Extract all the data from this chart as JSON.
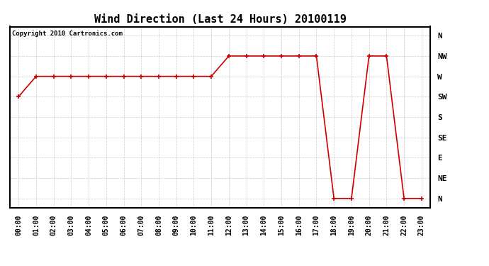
{
  "title": "Wind Direction (Last 24 Hours) 20100119",
  "copyright": "Copyright 2010 Cartronics.com",
  "background_color": "#ffffff",
  "line_color": "#cc0000",
  "marker": "+",
  "x_labels": [
    "00:00",
    "01:00",
    "02:00",
    "03:00",
    "04:00",
    "05:00",
    "06:00",
    "07:00",
    "08:00",
    "09:00",
    "10:00",
    "11:00",
    "12:00",
    "13:00",
    "14:00",
    "15:00",
    "16:00",
    "17:00",
    "18:00",
    "19:00",
    "20:00",
    "21:00",
    "22:00",
    "23:00"
  ],
  "y_ticks": [
    0,
    45,
    90,
    135,
    180,
    225,
    270,
    315,
    360
  ],
  "y_labels": [
    "N",
    "NE",
    "E",
    "SE",
    "S",
    "SW",
    "W",
    "NW",
    "N"
  ],
  "wind_data": [
    225,
    270,
    270,
    270,
    270,
    270,
    270,
    270,
    270,
    270,
    270,
    270,
    315,
    315,
    315,
    315,
    315,
    315,
    0,
    0,
    315,
    315,
    0,
    0
  ],
  "xlim": [
    -0.5,
    23.5
  ],
  "ylim": [
    -20,
    380
  ],
  "grid_color": "#cccccc",
  "title_fontsize": 11,
  "tick_fontsize": 7,
  "copyright_fontsize": 6.5,
  "linewidth": 1.2,
  "markersize": 4
}
